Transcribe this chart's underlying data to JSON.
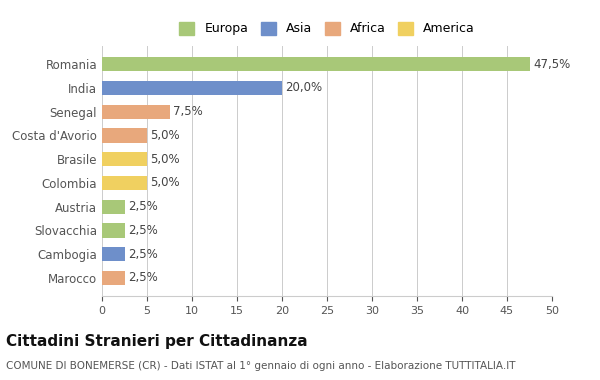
{
  "categories": [
    "Marocco",
    "Cambogia",
    "Slovacchia",
    "Austria",
    "Colombia",
    "Brasile",
    "Costa d'Avorio",
    "Senegal",
    "India",
    "Romania"
  ],
  "values": [
    2.5,
    2.5,
    2.5,
    2.5,
    5.0,
    5.0,
    5.0,
    7.5,
    20.0,
    47.5
  ],
  "colors": [
    "#e8a87c",
    "#6e8fca",
    "#a8c878",
    "#a8c878",
    "#f0d060",
    "#f0d060",
    "#e8a87c",
    "#e8a87c",
    "#6e8fca",
    "#a8c878"
  ],
  "labels": [
    "2,5%",
    "2,5%",
    "2,5%",
    "2,5%",
    "5,0%",
    "5,0%",
    "5,0%",
    "7,5%",
    "20,0%",
    "47,5%"
  ],
  "xlim": [
    0,
    50
  ],
  "xticks": [
    0,
    5,
    10,
    15,
    20,
    25,
    30,
    35,
    40,
    45,
    50
  ],
  "legend": [
    {
      "label": "Europa",
      "color": "#a8c878"
    },
    {
      "label": "Asia",
      "color": "#6e8fca"
    },
    {
      "label": "Africa",
      "color": "#e8a87c"
    },
    {
      "label": "America",
      "color": "#f0d060"
    }
  ],
  "title": "Cittadini Stranieri per Cittadinanza",
  "subtitle": "COMUNE DI BONEMERSE (CR) - Dati ISTAT al 1° gennaio di ogni anno - Elaborazione TUTTITALIA.IT",
  "background_color": "#ffffff",
  "grid_color": "#cccccc"
}
